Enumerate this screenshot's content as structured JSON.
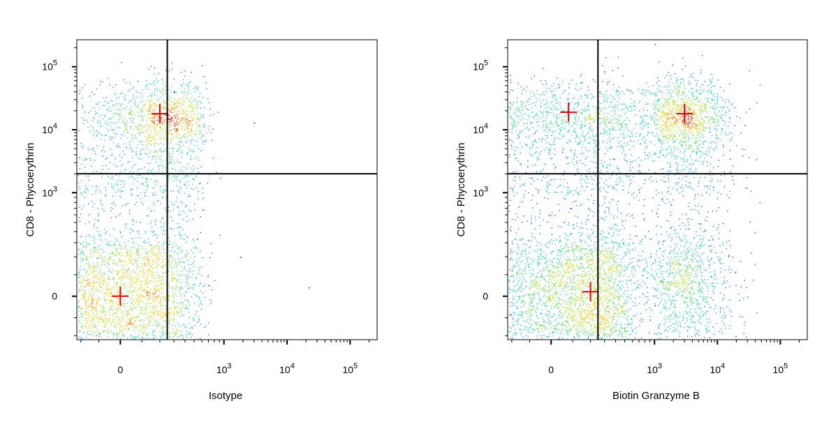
{
  "chart_data": [
    {
      "type": "scatter",
      "xlabel": "Isotype",
      "ylabel": "CD8 - Phycoerythrin",
      "x_ticks": [
        {
          "value": 0,
          "base": "0",
          "exp": ""
        },
        {
          "value": 1000,
          "base": "10",
          "exp": "3"
        },
        {
          "value": 10000,
          "base": "10",
          "exp": "4"
        },
        {
          "value": 100000,
          "base": "10",
          "exp": "5"
        }
      ],
      "y_ticks": [
        {
          "value": 0,
          "base": "0",
          "exp": ""
        },
        {
          "value": 1000,
          "base": "10",
          "exp": "3"
        },
        {
          "value": 10000,
          "base": "10",
          "exp": "4"
        },
        {
          "value": 100000,
          "base": "10",
          "exp": "5"
        }
      ],
      "x_scale": "biexponential",
      "y_scale": "biexponential",
      "gate": {
        "x": 250,
        "y": 2000
      },
      "populations": [
        {
          "x": 0,
          "y": 0,
          "count": 2600,
          "sx": 250,
          "sy": 170,
          "peak": [
            {
              "x": 0,
              "y": 0
            }
          ]
        },
        {
          "x": 200,
          "y": 15000,
          "count": 1100,
          "sx": 220,
          "sy": 0.3,
          "peak": [
            {
              "x": 200,
              "y": 18000
            }
          ]
        },
        {
          "x": 100,
          "y": 1200,
          "count": 700,
          "sx": 250,
          "sy": 0.45
        }
      ],
      "outliers": [
        {
          "x": 3000,
          "y": 13000
        },
        {
          "x": 1800,
          "y": 200
        },
        {
          "x": 700,
          "y": 50
        },
        {
          "x": 22000,
          "y": 40
        },
        {
          "x": 300,
          "y": 40000
        }
      ]
    },
    {
      "type": "scatter",
      "xlabel": "Biotin Granzyme B",
      "ylabel": "CD8 - Phycoerythrin",
      "x_ticks": [
        {
          "value": 0,
          "base": "0",
          "exp": ""
        },
        {
          "value": 1000,
          "base": "10",
          "exp": "3"
        },
        {
          "value": 10000,
          "base": "10",
          "exp": "4"
        },
        {
          "value": 100000,
          "base": "10",
          "exp": "5"
        }
      ],
      "y_ticks": [
        {
          "value": 0,
          "base": "0",
          "exp": ""
        },
        {
          "value": 1000,
          "base": "10",
          "exp": "3"
        },
        {
          "value": 10000,
          "base": "10",
          "exp": "4"
        },
        {
          "value": 100000,
          "base": "10",
          "exp": "5"
        }
      ],
      "x_scale": "biexponential",
      "y_scale": "biexponential",
      "gate": {
        "x": 250,
        "y": 2000
      },
      "populations": [
        {
          "x": 100,
          "y": 0,
          "count": 2600,
          "sx": 230,
          "sy": 170,
          "peak": [
            {
              "x": 200,
              "y": 20
            }
          ]
        },
        {
          "x": 80,
          "y": 16000,
          "count": 900,
          "sx": 250,
          "sy": 0.3,
          "peak": [
            {
              "x": 80,
              "y": 19000
            }
          ]
        },
        {
          "x": 2800,
          "y": 16000,
          "count": 1100,
          "sx": 0.38,
          "sy": 0.3,
          "peak": [
            {
              "x": 3000,
              "y": 18000
            }
          ]
        },
        {
          "x": 3000,
          "y": 40,
          "count": 1000,
          "sx": 0.38,
          "sy": 170
        },
        {
          "x": 3000,
          "y": 1500,
          "count": 400,
          "sx": 0.45,
          "sy": 0.5
        },
        {
          "x": 100,
          "y": 1200,
          "count": 600,
          "sx": 270,
          "sy": 0.45
        }
      ],
      "outliers": []
    }
  ]
}
